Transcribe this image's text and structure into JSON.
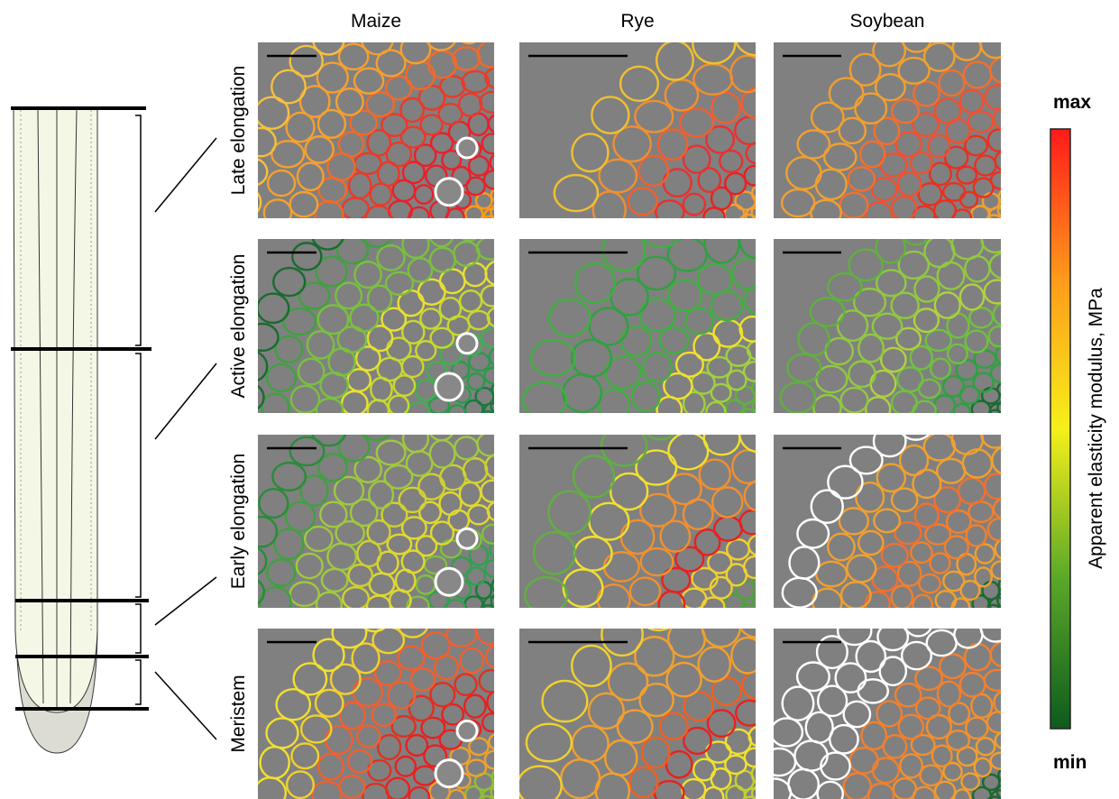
{
  "columns": [
    "Maize",
    "Rye",
    "Soybean"
  ],
  "rows": [
    "Late elongation",
    "Active elongation",
    "Early elongation",
    "Meristem"
  ],
  "colorbar": {
    "max": "max",
    "min": "min",
    "label": "Apparent elasticity modulus, MPa"
  }
}
